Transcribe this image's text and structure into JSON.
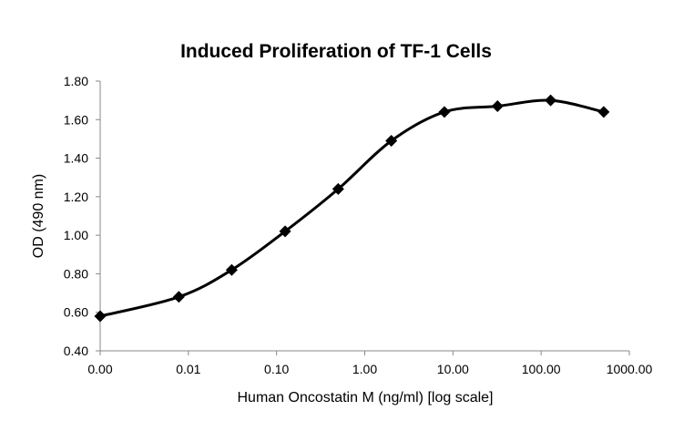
{
  "chart_data": {
    "type": "line",
    "title": "Induced Proliferation of TF-1 Cells",
    "xlabel": "Human Oncostatin M (ng/ml) [log scale]",
    "ylabel": "OD (490 nm)",
    "x_scale": "log",
    "x_tick_labels": [
      "0.00",
      "0.01",
      "0.10",
      "1.00",
      "10.00",
      "100.00",
      "1000.00"
    ],
    "y_tick_labels": [
      "0.40",
      "0.60",
      "0.80",
      "1.00",
      "1.20",
      "1.40",
      "1.60",
      "1.80"
    ],
    "ylim": [
      0.4,
      1.8
    ],
    "grid": false,
    "legend": "none",
    "series": [
      {
        "x": [
          0.001,
          0.0078,
          0.031,
          0.125,
          0.5,
          2,
          8,
          32,
          128,
          512
        ],
        "y": [
          0.58,
          0.68,
          0.82,
          1.02,
          1.24,
          1.49,
          1.64,
          1.67,
          1.7,
          1.64
        ],
        "color": "#000000",
        "marker": "diamond",
        "smooth": true
      }
    ]
  }
}
